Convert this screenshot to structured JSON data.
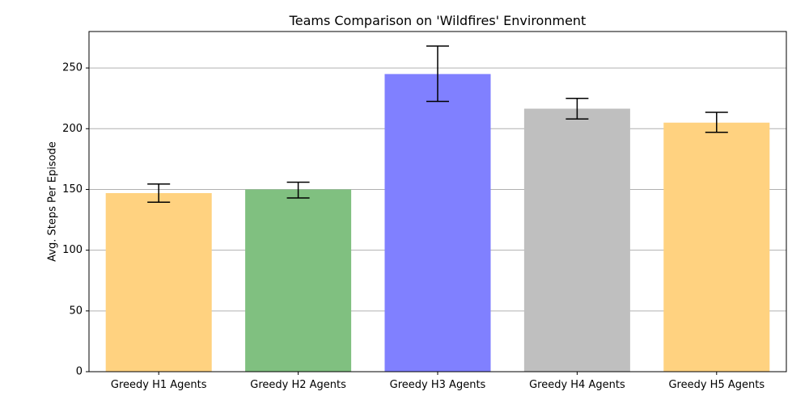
{
  "chart_data": {
    "type": "bar",
    "title": "Teams Comparison on 'Wildfires' Environment",
    "xlabel": "",
    "ylabel": "Avg. Steps Per Episode",
    "categories": [
      "Greedy H1 Agents",
      "Greedy H2 Agents",
      "Greedy H3 Agents",
      "Greedy H4 Agents",
      "Greedy H5 Agents"
    ],
    "values": [
      147,
      150,
      245,
      216.5,
      205
    ],
    "error_low": [
      139.5,
      143,
      222.5,
      208,
      197
    ],
    "error_high": [
      154.5,
      156,
      268,
      225,
      213.5
    ],
    "colors": [
      "#ffd280",
      "#80c080",
      "#8080ff",
      "#bfbfbf",
      "#ffd280"
    ],
    "ylim": [
      0,
      280
    ],
    "yticks": [
      0,
      50,
      100,
      150,
      200,
      250
    ],
    "grid": "horizontal",
    "legend": "none"
  }
}
